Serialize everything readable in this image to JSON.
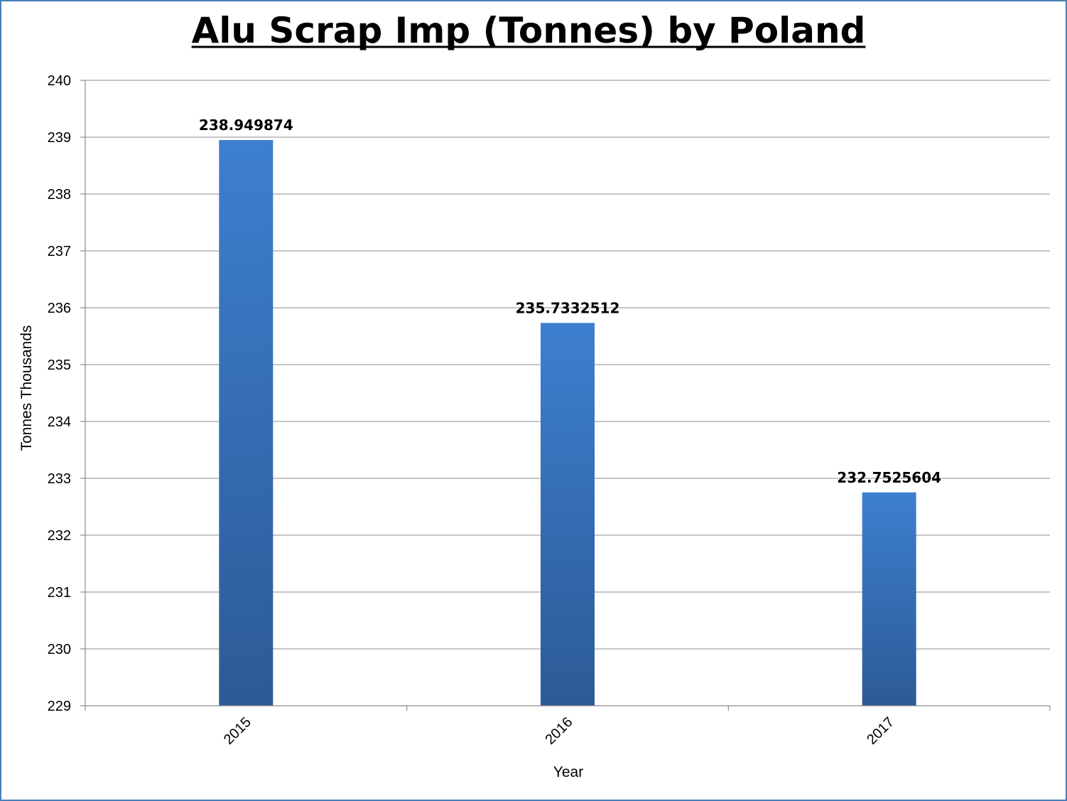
{
  "chart_data": {
    "type": "bar",
    "title": "Alu Scrap Imp (Tonnes) by Poland",
    "xlabel": "Year",
    "ylabel": "Tonnes Thousands",
    "categories": [
      "2015",
      "2016",
      "2017"
    ],
    "values": [
      238.949874,
      235.7332512,
      232.7525604
    ],
    "data_labels": [
      "238.949874",
      "235.7332512",
      "232.7525604"
    ],
    "ylim": [
      229,
      240
    ],
    "yticks": [
      "229",
      "230",
      "231",
      "232",
      "233",
      "234",
      "235",
      "236",
      "237",
      "238",
      "239",
      "240"
    ],
    "grid": true,
    "bar_color_top": "#3d7fcf",
    "bar_color_bottom": "#2c5a96",
    "border_color": "#4a7ebb"
  }
}
